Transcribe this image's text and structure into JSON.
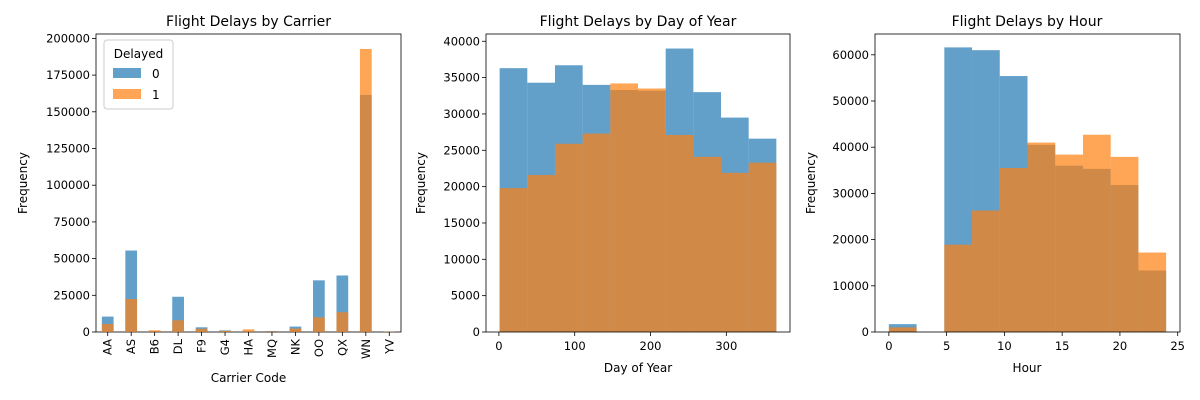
{
  "colors": {
    "s0": "#1f77b4",
    "s1": "#ff7f0e"
  },
  "legend": {
    "title": "Delayed",
    "placement": "upper-left",
    "entries": [
      "0",
      "1"
    ]
  },
  "chart_data": [
    {
      "type": "bar",
      "title": "Flight Delays by Carrier",
      "xlabel": "Carrier Code",
      "ylabel": "Frequency",
      "categories": [
        "AA",
        "AS",
        "B6",
        "DL",
        "F9",
        "G4",
        "HA",
        "MQ",
        "NK",
        "OO",
        "QX",
        "WN",
        "YV"
      ],
      "ylim": [
        0,
        203000
      ],
      "yticks": [
        0,
        25000,
        50000,
        75000,
        100000,
        125000,
        150000,
        175000,
        200000
      ],
      "series": [
        {
          "name": "0",
          "values": [
            10500,
            55500,
            600,
            24000,
            3200,
            1100,
            600,
            700,
            3700,
            35200,
            38500,
            161500,
            100
          ]
        },
        {
          "name": "1",
          "values": [
            5500,
            22500,
            1200,
            8000,
            2200,
            800,
            1800,
            500,
            2400,
            10000,
            13500,
            192800,
            200
          ]
        }
      ],
      "legend": true
    },
    {
      "type": "histogram",
      "title": "Flight Delays by Day of Year",
      "xlabel": "Day of Year",
      "ylabel": "Frequency",
      "bins": [
        1,
        37.5,
        74,
        110.5,
        147,
        183.5,
        220,
        256.5,
        293,
        329.5,
        366
      ],
      "xlim": [
        -17,
        384
      ],
      "ylim": [
        0,
        41000
      ],
      "xticks": [
        0,
        100,
        200,
        300
      ],
      "yticks": [
        0,
        5000,
        10000,
        15000,
        20000,
        25000,
        30000,
        35000,
        40000
      ],
      "series": [
        {
          "name": "0",
          "values": [
            36300,
            34300,
            36700,
            34000,
            33300,
            33200,
            39000,
            33000,
            29500,
            26600
          ]
        },
        {
          "name": "1",
          "values": [
            19800,
            21600,
            25900,
            27300,
            34200,
            33500,
            27100,
            24100,
            21900,
            23300
          ]
        }
      ]
    },
    {
      "type": "histogram",
      "title": "Flight Delays by Hour",
      "xlabel": "Hour",
      "ylabel": "Frequency",
      "bins": [
        0,
        2.4,
        4.8,
        7.2,
        9.6,
        12,
        14.4,
        16.8,
        19.2,
        21.6,
        24
      ],
      "xlim": [
        -1.2,
        25.2
      ],
      "ylim": [
        0,
        64500
      ],
      "xticks": [
        0,
        5,
        10,
        15,
        20,
        25
      ],
      "yticks": [
        0,
        10000,
        20000,
        30000,
        40000,
        50000,
        60000
      ],
      "series": [
        {
          "name": "0",
          "values": [
            1700,
            0,
            61600,
            61000,
            55400,
            40500,
            36000,
            35300,
            31800,
            13300
          ]
        },
        {
          "name": "1",
          "values": [
            1000,
            0,
            18900,
            26300,
            35500,
            41000,
            38400,
            42700,
            37900,
            17200
          ]
        }
      ]
    }
  ]
}
